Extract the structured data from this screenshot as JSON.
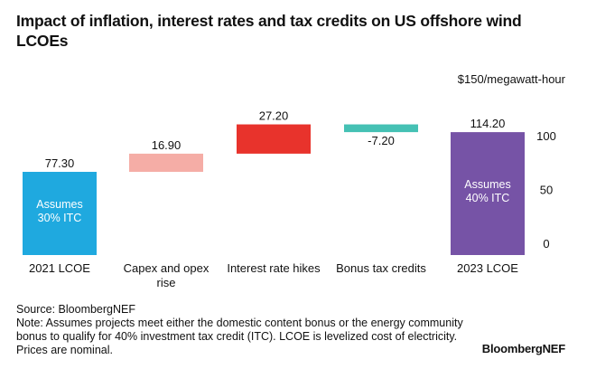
{
  "title": "Impact of inflation, interest rates and tax credits on US offshore wind LCOEs",
  "unit_label": "$150/megawatt-hour",
  "source": "Source: BloombergNEF",
  "note": "Note: Assumes projects meet either the domestic content bonus or the energy community bonus to qualify for 40% investment tax credit (ITC). LCOE is levelized cost of electricity. Prices are nominal.",
  "brand": "BloombergNEF",
  "chart_data": {
    "type": "bar",
    "subtype": "waterfall",
    "title": "Impact of inflation, interest rates and tax credits on US offshore wind LCOEs",
    "ylabel": "$150/megawatt-hour",
    "ylim": [
      0,
      150
    ],
    "yticks": [
      0,
      50,
      100
    ],
    "grid": false,
    "categories": [
      "2021 LCOE",
      "Capex and opex rise",
      "Interest rate hikes",
      "Bonus tax credits",
      "2023 LCOE"
    ],
    "category_lines": [
      [
        "2021 LCOE"
      ],
      [
        "Capex and opex",
        "rise"
      ],
      [
        "Interest rate hikes"
      ],
      [
        "Bonus tax credits"
      ],
      [
        "2023 LCOE"
      ]
    ],
    "bars": [
      {
        "category": "2021 LCOE",
        "kind": "total",
        "value": 77.3,
        "label": "77.30",
        "color": "#1fa9df",
        "inner_label": [
          "Assumes",
          "30% ITC"
        ]
      },
      {
        "category": "Capex and opex rise",
        "kind": "delta",
        "value": 16.9,
        "label": "16.90",
        "color": "#f5ada6"
      },
      {
        "category": "Interest rate hikes",
        "kind": "delta",
        "value": 27.2,
        "label": "27.20",
        "color": "#e8332c"
      },
      {
        "category": "Bonus tax credits",
        "kind": "delta",
        "value": -7.2,
        "label": "-7.20",
        "color": "#45c1b4"
      },
      {
        "category": "2023 LCOE",
        "kind": "total",
        "value": 114.2,
        "label": "114.20",
        "color": "#7653a6",
        "inner_label": [
          "Assumes",
          "40% ITC"
        ]
      }
    ]
  }
}
